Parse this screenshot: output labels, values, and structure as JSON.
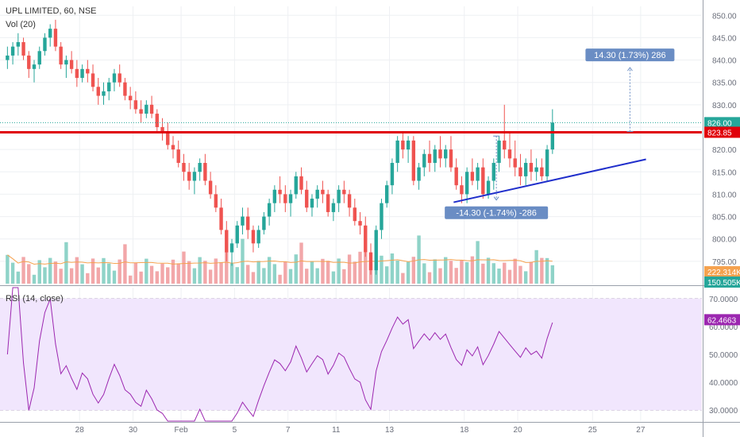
{
  "chart_data": {
    "type": "candlestick",
    "title": "UPL LIMITED, 60, NSE",
    "volume_label": "Vol (20)",
    "rsi_label": "RSI (14, close)",
    "price_axis": {
      "ylim": [
        790,
        852
      ],
      "ticks": [
        "795.00",
        "800.00",
        "805.00",
        "810.00",
        "815.00",
        "820.00",
        "825.00",
        "830.00",
        "835.00",
        "840.00",
        "845.00",
        "850.00"
      ],
      "tick_values": [
        795,
        800,
        805,
        810,
        815,
        820,
        825,
        830,
        835,
        840,
        845,
        850
      ]
    },
    "rsi_axis": {
      "ylim": [
        26,
        74
      ],
      "ticks": [
        "30.0000",
        "40.0000",
        "50.0000",
        "60.0000",
        "70.0000"
      ],
      "tick_values": [
        30,
        40,
        50,
        60,
        70
      ],
      "band": [
        30,
        70
      ]
    },
    "x_ticks": [
      {
        "label": "28",
        "slot": 14
      },
      {
        "label": "30",
        "slot": 24
      },
      {
        "label": "Feb",
        "slot": 33
      },
      {
        "label": "5",
        "slot": 43
      },
      {
        "label": "7",
        "slot": 53
      },
      {
        "label": "11",
        "slot": 62
      },
      {
        "label": "13",
        "slot": 72
      },
      {
        "label": "18",
        "slot": 86
      },
      {
        "label": "20",
        "slot": 96
      },
      {
        "label": "25",
        "slot": 110
      },
      {
        "label": "27",
        "slot": 119
      }
    ],
    "candles": [
      [
        840,
        843,
        838,
        841
      ],
      [
        841,
        844,
        839,
        843
      ],
      [
        843,
        846,
        841,
        844
      ],
      [
        844,
        845,
        840,
        841
      ],
      [
        841,
        842,
        836,
        838
      ],
      [
        838,
        840,
        835,
        839
      ],
      [
        839,
        843,
        838,
        842
      ],
      [
        842,
        846,
        841,
        845
      ],
      [
        845,
        848,
        843,
        847
      ],
      [
        847,
        849,
        842,
        843
      ],
      [
        843,
        844,
        838,
        839
      ],
      [
        839,
        841,
        836,
        840
      ],
      [
        840,
        842,
        837,
        838
      ],
      [
        838,
        840,
        834,
        836
      ],
      [
        836,
        839,
        835,
        838
      ],
      [
        838,
        840,
        835,
        837
      ],
      [
        837,
        839,
        833,
        834
      ],
      [
        834,
        836,
        830,
        832
      ],
      [
        832,
        835,
        830,
        833
      ],
      [
        833,
        836,
        831,
        835
      ],
      [
        835,
        838,
        833,
        837
      ],
      [
        837,
        839,
        834,
        835
      ],
      [
        835,
        836,
        831,
        832
      ],
      [
        832,
        834,
        829,
        831
      ],
      [
        831,
        833,
        828,
        829
      ],
      [
        829,
        831,
        826,
        828
      ],
      [
        828,
        831,
        827,
        830
      ],
      [
        830,
        832,
        827,
        828
      ],
      [
        828,
        829,
        824,
        825
      ],
      [
        825,
        827,
        822,
        824
      ],
      [
        824,
        826,
        820,
        821
      ],
      [
        821,
        823,
        818,
        820
      ],
      [
        820,
        822,
        816,
        817
      ],
      [
        817,
        819,
        813,
        815
      ],
      [
        815,
        817,
        811,
        813
      ],
      [
        813,
        816,
        810,
        815
      ],
      [
        815,
        818,
        813,
        817
      ],
      [
        817,
        819,
        812,
        813
      ],
      [
        813,
        815,
        809,
        810
      ],
      [
        810,
        812,
        806,
        807
      ],
      [
        807,
        809,
        801,
        802
      ],
      [
        802,
        804,
        795,
        797
      ],
      [
        797,
        800,
        794,
        799
      ],
      [
        799,
        804,
        798,
        803
      ],
      [
        803,
        807,
        801,
        805
      ],
      [
        805,
        807,
        800,
        802
      ],
      [
        802,
        803,
        797,
        799
      ],
      [
        799,
        803,
        798,
        802
      ],
      [
        802,
        806,
        801,
        805
      ],
      [
        805,
        809,
        803,
        808
      ],
      [
        808,
        812,
        806,
        811
      ],
      [
        811,
        814,
        808,
        810
      ],
      [
        810,
        812,
        806,
        808
      ],
      [
        808,
        811,
        805,
        810
      ],
      [
        810,
        815,
        809,
        814
      ],
      [
        814,
        816,
        810,
        811
      ],
      [
        811,
        813,
        806,
        807
      ],
      [
        807,
        810,
        805,
        809
      ],
      [
        809,
        812,
        807,
        811
      ],
      [
        811,
        813,
        808,
        810
      ],
      [
        810,
        811,
        805,
        806
      ],
      [
        806,
        809,
        804,
        808
      ],
      [
        808,
        812,
        806,
        811
      ],
      [
        811,
        813,
        808,
        810
      ],
      [
        810,
        811,
        805,
        807
      ],
      [
        807,
        809,
        803,
        804
      ],
      [
        804,
        806,
        801,
        803
      ],
      [
        803,
        805,
        796,
        797
      ],
      [
        797,
        799,
        792,
        793
      ],
      [
        793,
        803,
        792,
        802
      ],
      [
        802,
        809,
        800,
        808
      ],
      [
        808,
        813,
        807,
        812
      ],
      [
        812,
        818,
        810,
        817
      ],
      [
        817,
        823,
        815,
        822
      ],
      [
        822,
        824,
        818,
        820
      ],
      [
        820,
        823,
        817,
        822
      ],
      [
        822,
        823,
        812,
        813
      ],
      [
        813,
        817,
        811,
        816
      ],
      [
        816,
        820,
        814,
        819
      ],
      [
        819,
        822,
        815,
        817
      ],
      [
        817,
        821,
        815,
        820
      ],
      [
        820,
        823,
        816,
        818
      ],
      [
        818,
        821,
        816,
        820
      ],
      [
        820,
        823,
        815,
        816
      ],
      [
        816,
        818,
        811,
        812
      ],
      [
        812,
        814,
        808,
        810
      ],
      [
        810,
        816,
        808,
        815
      ],
      [
        815,
        818,
        812,
        813
      ],
      [
        813,
        817,
        811,
        816
      ],
      [
        816,
        818,
        809,
        810
      ],
      [
        810,
        814,
        809,
        813
      ],
      [
        813,
        818,
        811,
        817
      ],
      [
        817,
        823,
        815,
        822
      ],
      [
        822,
        830,
        818,
        820
      ],
      [
        820,
        824,
        816,
        818
      ],
      [
        818,
        822,
        814,
        816
      ],
      [
        816,
        819,
        812,
        814
      ],
      [
        814,
        818,
        812,
        817
      ],
      [
        817,
        820,
        813,
        815
      ],
      [
        815,
        818,
        813,
        816
      ],
      [
        816,
        818,
        813,
        814
      ],
      [
        814,
        821,
        813,
        820
      ],
      [
        820,
        829,
        819,
        826
      ]
    ],
    "volume_ma_label": "222.314K",
    "volume_last_label": "150.505K",
    "volume_color_up": "#8fd3c8",
    "volume_color_down": "#f2a7a9",
    "rsi_last_label": "62.4663",
    "rsi_color": "#9c27b0",
    "last_price_label": "826.00",
    "resistance": {
      "value": 823.85,
      "label": "823.85",
      "color": "#e0000a"
    },
    "trendline": {
      "from": [
        84,
        808.2
      ],
      "to": [
        120,
        817.8
      ],
      "color": "#1f2ecb"
    },
    "measure_up": {
      "label": "14.30 (1.73%) 286",
      "slot": 117,
      "from": 824.0,
      "to": 838.3
    },
    "measure_down": {
      "label": "-14.30 (-1.74%) -286",
      "slot": 92,
      "from": 823.0,
      "to": 808.7
    },
    "colors": {
      "up": "#26a69a",
      "down": "#ef5350",
      "axis_text": "#6b6f7b",
      "grid": "#eef0f3",
      "rsi_band": "#f1e6fd",
      "measure_box": "#6a8dc4",
      "last_price": "#26a69a"
    }
  }
}
